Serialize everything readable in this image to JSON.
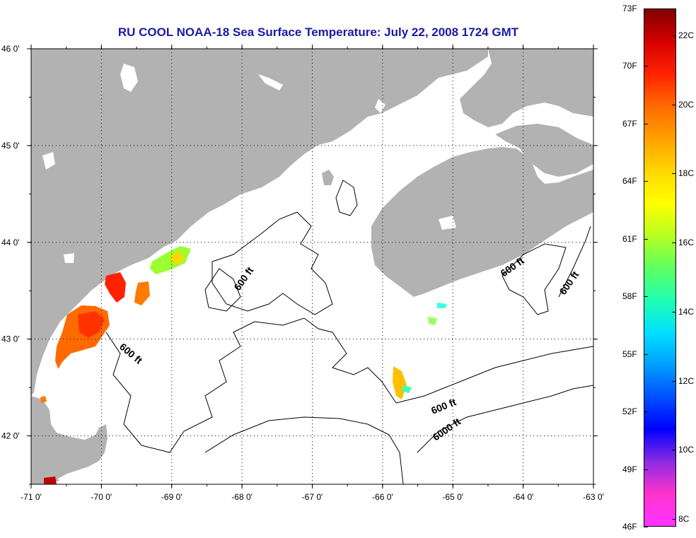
{
  "title": "RU COOL  NOAA-18  Sea Surface Temperature:  July 22, 2008 1724 GMT",
  "map": {
    "lon_range": [
      -71,
      -63
    ],
    "lat_range": [
      41.5,
      46
    ],
    "lon_ticks": [
      {
        "value": -71,
        "label": "-71 0'"
      },
      {
        "value": -70,
        "label": "-70 0'"
      },
      {
        "value": -69,
        "label": "-69 0'"
      },
      {
        "value": -68,
        "label": "-68 0'"
      },
      {
        "value": -67,
        "label": "-67 0'"
      },
      {
        "value": -66,
        "label": "-66 0'"
      },
      {
        "value": -65,
        "label": "-65 0'"
      },
      {
        "value": -64,
        "label": "-64 0'"
      },
      {
        "value": -63,
        "label": "-63 0'"
      }
    ],
    "lat_ticks": [
      {
        "value": 46,
        "label": "46 0'"
      },
      {
        "value": 45,
        "label": "45 0'"
      },
      {
        "value": 44,
        "label": "44 0'"
      },
      {
        "value": 43,
        "label": "43 0'"
      },
      {
        "value": 42,
        "label": "42 0'"
      }
    ],
    "contour_labels": [
      "600 ft",
      "600 ft",
      "600 ft",
      "600 ft",
      "600 ft",
      "6000 ft"
    ],
    "colors": {
      "land": "#b2b2b2",
      "ocean": "#ffffff",
      "contour": "#000000",
      "grid": "#000000"
    }
  },
  "colorbar": {
    "colors_top_to_bottom": [
      "#800000",
      "#d40000",
      "#ff2200",
      "#ff6a00",
      "#ffa000",
      "#ffd700",
      "#ffff00",
      "#b8ff20",
      "#60ff60",
      "#20ffb0",
      "#00e0ff",
      "#00a0ff",
      "#0050ff",
      "#0000ff",
      "#8a2be2",
      "#ff33cc",
      "#ff33ff"
    ],
    "fahrenheit": [
      {
        "value": 73,
        "label": "73F"
      },
      {
        "value": 70,
        "label": "70F"
      },
      {
        "value": 67,
        "label": "67F"
      },
      {
        "value": 64,
        "label": "64F"
      },
      {
        "value": 61,
        "label": "61F"
      },
      {
        "value": 58,
        "label": "58F"
      },
      {
        "value": 55,
        "label": "55F"
      },
      {
        "value": 52,
        "label": "52F"
      },
      {
        "value": 49,
        "label": "49F"
      },
      {
        "value": 46,
        "label": "46F"
      }
    ],
    "celsius": [
      {
        "value": 22,
        "label": "22C"
      },
      {
        "value": 20,
        "label": "20C"
      },
      {
        "value": 18,
        "label": "18C"
      },
      {
        "value": 16,
        "label": "16C"
      },
      {
        "value": 14,
        "label": "14C"
      },
      {
        "value": 12,
        "label": "12C"
      },
      {
        "value": 10,
        "label": "10C"
      },
      {
        "value": 8,
        "label": "8C"
      }
    ]
  }
}
